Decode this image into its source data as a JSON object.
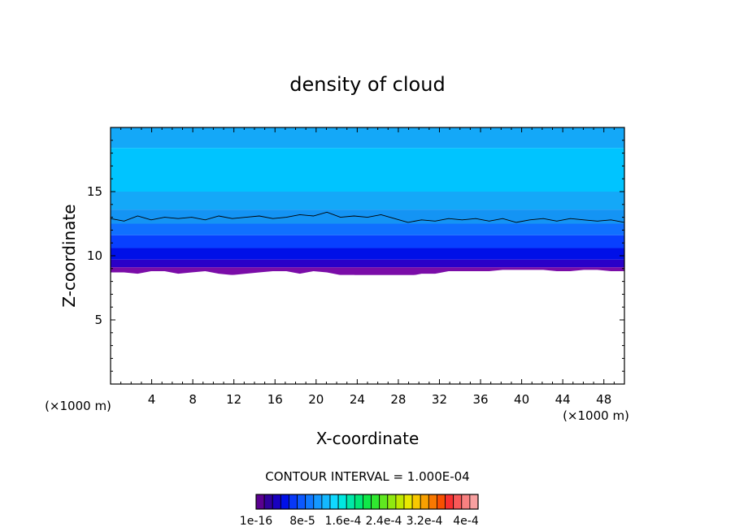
{
  "chart_data": {
    "type": "heatmap",
    "title": "density of cloud",
    "xlabel": "X-coordinate",
    "ylabel": "Z-coordinate",
    "x_unit_left": "(×1000 m)",
    "x_unit_right": "(×1000 m)",
    "xlim": [
      0,
      50
    ],
    "ylim": [
      0,
      20
    ],
    "x_ticks": [
      4,
      8,
      12,
      16,
      20,
      24,
      28,
      32,
      36,
      40,
      44,
      48
    ],
    "y_ticks": [
      5,
      10,
      15
    ],
    "cloud_base_z": [
      8.7,
      8.7,
      8.6,
      8.8,
      8.8,
      8.6,
      8.7,
      8.8,
      8.6,
      8.5,
      8.6,
      8.7,
      8.8,
      8.8,
      8.6,
      8.8,
      8.7,
      8.5,
      8.5,
      8.3,
      8.4,
      8.3,
      8.4,
      8.6,
      8.6,
      8.8,
      8.8,
      8.8,
      8.8,
      8.9,
      8.9,
      8.9,
      8.9,
      8.8,
      8.8,
      8.9,
      8.9,
      8.8,
      8.8
    ],
    "contour_line_z": [
      12.9,
      12.7,
      13.1,
      12.8,
      13.0,
      12.9,
      13.0,
      12.8,
      13.1,
      12.9,
      13.0,
      13.1,
      12.9,
      13.0,
      13.2,
      13.1,
      13.4,
      13.0,
      13.1,
      13.0,
      13.2,
      12.9,
      12.6,
      12.8,
      12.7,
      12.9,
      12.8,
      12.9,
      12.7,
      12.9,
      12.6,
      12.8,
      12.9,
      12.7,
      12.9,
      12.8,
      12.7,
      12.8,
      12.6
    ],
    "layers": [
      {
        "z": [
          8.5,
          9.1
        ],
        "color": "#7a0ca8"
      },
      {
        "z": [
          9.1,
          9.7
        ],
        "color": "#2a00c8"
      },
      {
        "z": [
          9.7,
          10.6
        ],
        "color": "#0010e8"
      },
      {
        "z": [
          10.6,
          11.6
        ],
        "color": "#0840ff"
      },
      {
        "z": [
          11.6,
          12.5
        ],
        "color": "#1070ff"
      },
      {
        "z": [
          12.5,
          13.6
        ],
        "color": "#1494f4"
      },
      {
        "z": [
          13.6,
          15.0
        ],
        "color": "#14a8f8"
      },
      {
        "z": [
          15.0,
          18.4
        ],
        "color": "#00c4ff"
      },
      {
        "z": [
          18.4,
          20.0
        ],
        "color": "#14a8f8"
      }
    ],
    "contour_interval_text": "CONTOUR INTERVAL = 1.000E-04",
    "colorbar": {
      "colors": [
        "#5a0090",
        "#30009c",
        "#1800c0",
        "#0010e8",
        "#0838f8",
        "#0c58ff",
        "#1078ff",
        "#1498ff",
        "#14b8ff",
        "#10d8ff",
        "#00e8e0",
        "#00e8a8",
        "#00e878",
        "#10e848",
        "#30e830",
        "#60e820",
        "#90e810",
        "#c0e800",
        "#e8e800",
        "#f8c800",
        "#f8a000",
        "#f87800",
        "#f85000",
        "#f83030",
        "#f85858",
        "#f88080",
        "#f8a0a0"
      ],
      "tick_labels": [
        "1e-16",
        "8e-5",
        "1.6e-4",
        "2.4e-4",
        "3.2e-4",
        "4e-4"
      ]
    }
  }
}
